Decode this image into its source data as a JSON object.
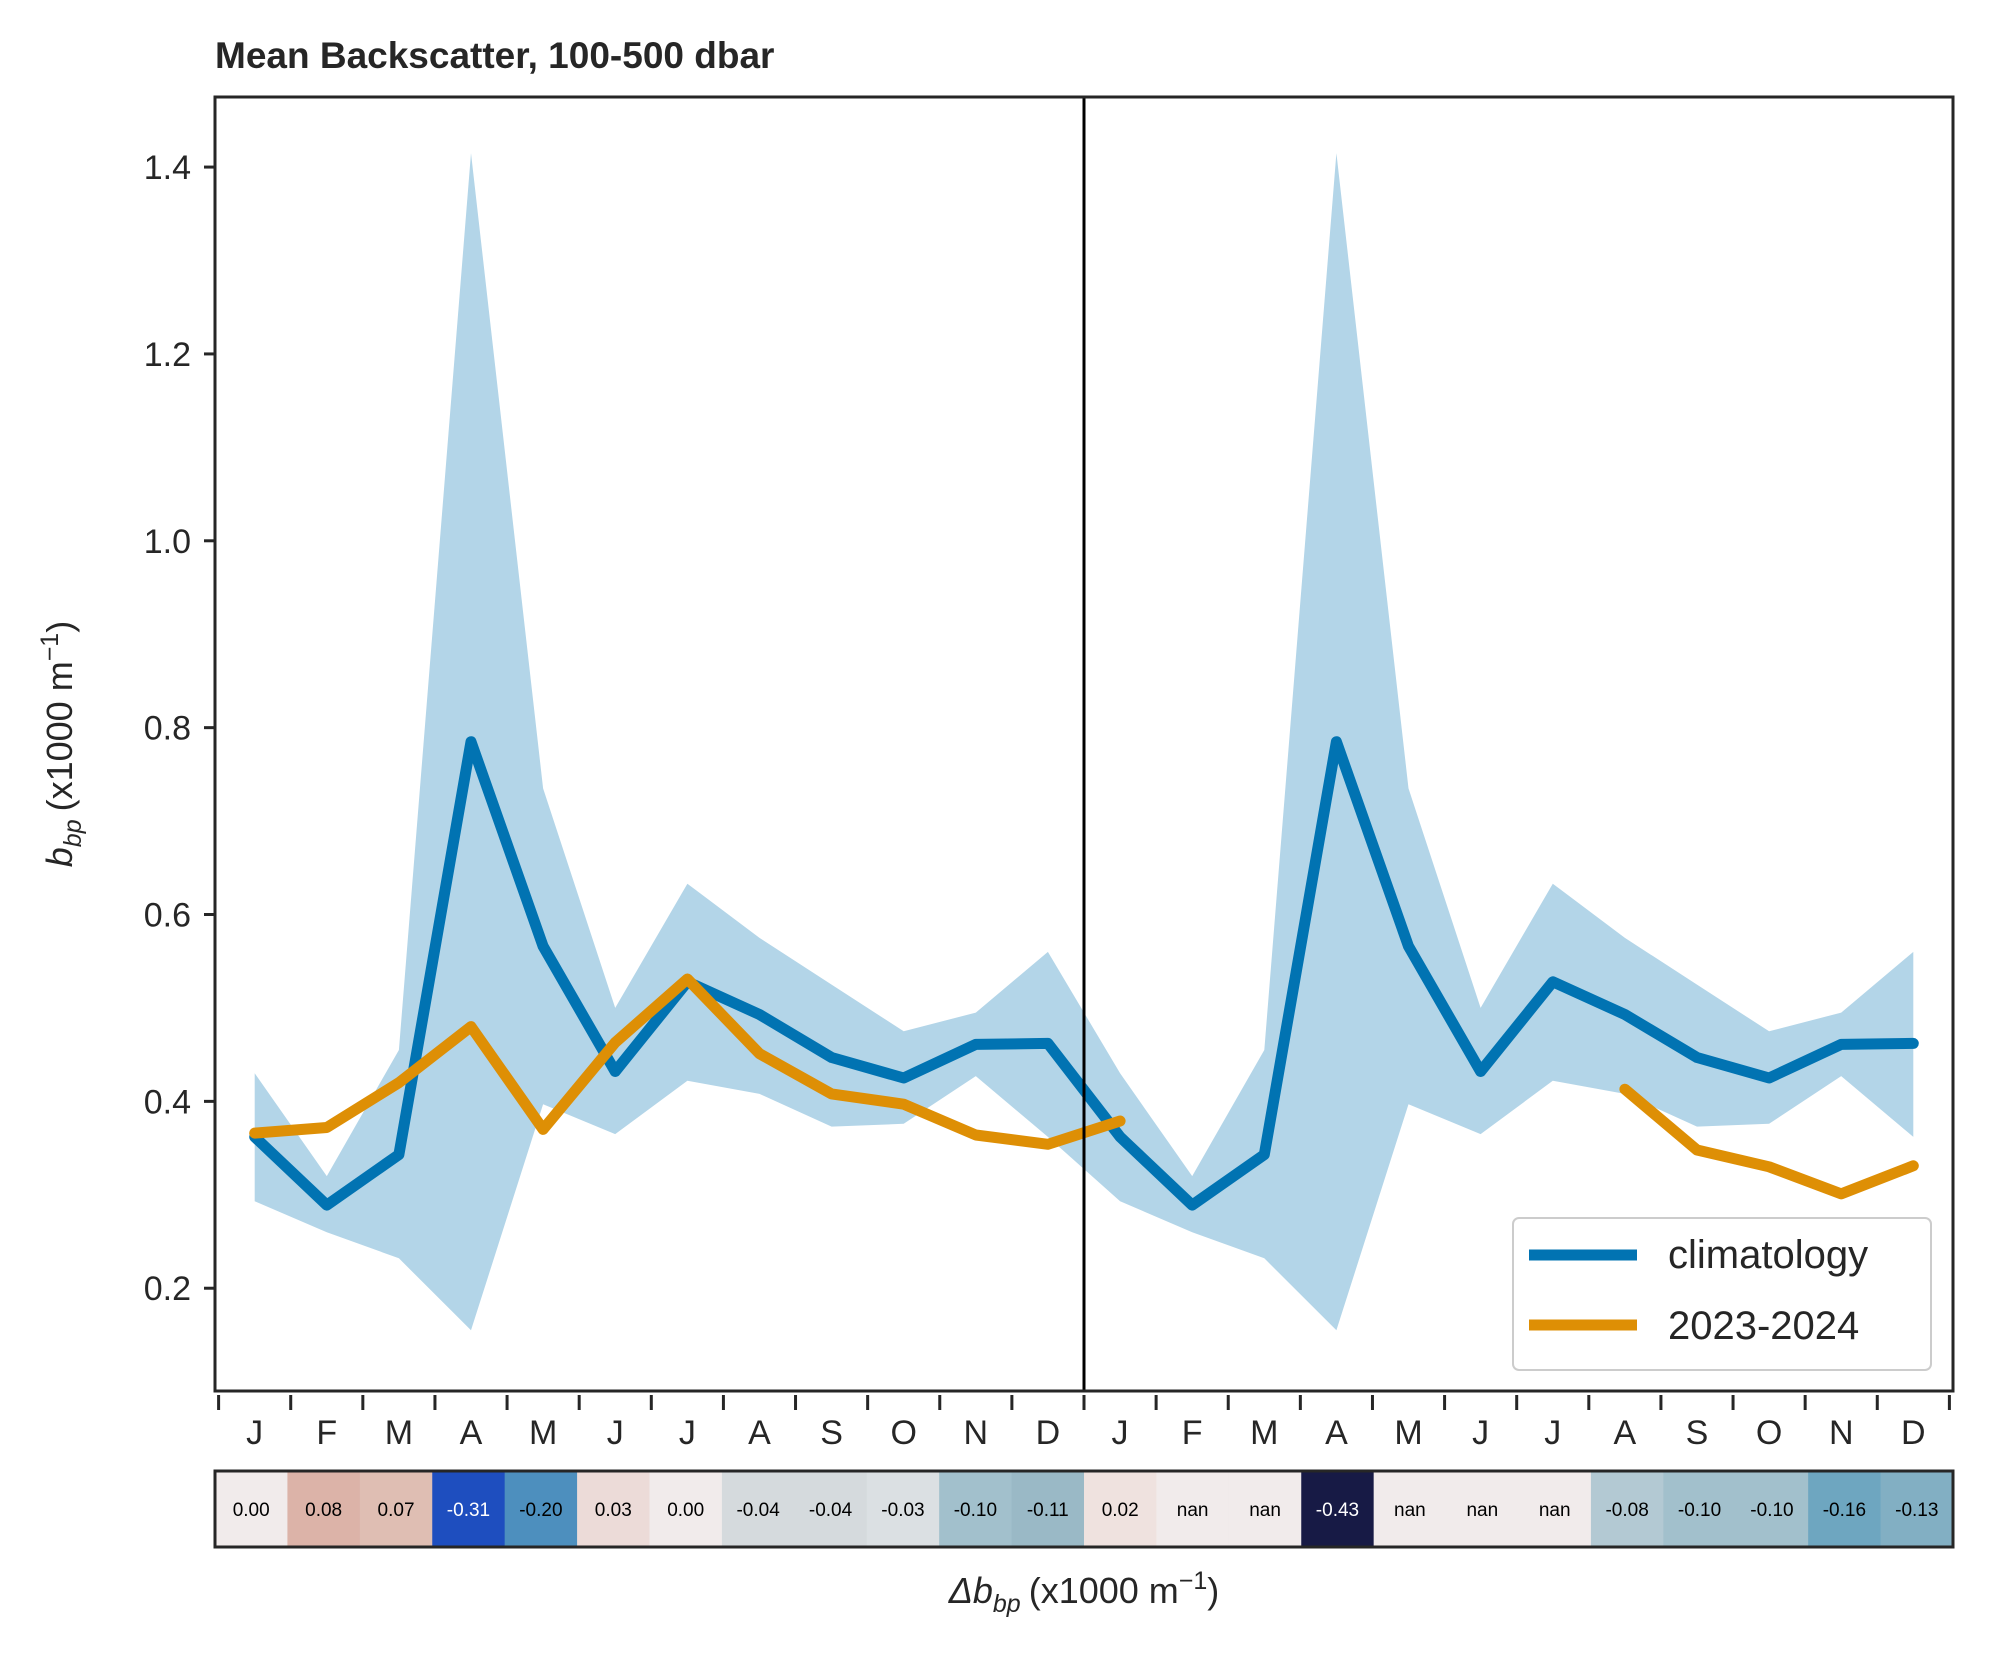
{
  "chart_data": {
    "type": "line",
    "title": "Mean Backscatter, 100-500 dbar",
    "ylabel_main": "b",
    "ylabel_sub": "bp",
    "ylabel_unit": "(x1000 m",
    "ylabel_exp": "−1",
    "ylabel_close": ")",
    "colorbar_label_main": "Δb",
    "colorbar_label_sub": "bp",
    "colorbar_label_unit": "(x1000 m",
    "colorbar_label_exp": "−1",
    "colorbar_label_close": ")",
    "ylim": [
      0.09,
      1.475
    ],
    "yticks": [
      0.2,
      0.4,
      0.6,
      0.8,
      1.0,
      1.2,
      1.4
    ],
    "ytick_labels": [
      "0.2",
      "0.4",
      "0.6",
      "0.8",
      "1.0",
      "1.2",
      "1.4"
    ],
    "month_labels": [
      "J",
      "F",
      "M",
      "A",
      "M",
      "J",
      "J",
      "A",
      "S",
      "O",
      "N",
      "D",
      "J",
      "F",
      "M",
      "A",
      "M",
      "J",
      "J",
      "A",
      "S",
      "O",
      "N",
      "D"
    ],
    "climatology": {
      "name": "climatology",
      "color": "#0173b2",
      "values": [
        0.362,
        0.289,
        0.343,
        0.785,
        0.566,
        0.432,
        0.528,
        0.493,
        0.447,
        0.425,
        0.461,
        0.462,
        0.362,
        0.289,
        0.343,
        0.785,
        0.566,
        0.432,
        0.528,
        0.493,
        0.447,
        0.425,
        0.461,
        0.462
      ]
    },
    "band": {
      "color": "#b3d5e8",
      "upper": [
        0.43,
        0.32,
        0.455,
        1.415,
        0.735,
        0.5,
        0.633,
        0.575,
        0.525,
        0.475,
        0.495,
        0.56,
        0.43,
        0.32,
        0.455,
        1.415,
        0.735,
        0.5,
        0.633,
        0.575,
        0.525,
        0.475,
        0.495,
        0.56
      ],
      "lower": [
        0.293,
        0.26,
        0.232,
        0.155,
        0.397,
        0.365,
        0.422,
        0.408,
        0.373,
        0.376,
        0.427,
        0.362,
        0.293,
        0.26,
        0.232,
        0.155,
        0.397,
        0.365,
        0.422,
        0.408,
        0.373,
        0.376,
        0.427,
        0.362
      ]
    },
    "observed": {
      "name": "2023-2024",
      "color": "#de8f05",
      "segments": [
        {
          "x": [
            1,
            2,
            3,
            4,
            5,
            6,
            7,
            8,
            9,
            10,
            11,
            12,
            13
          ],
          "y": [
            0.366,
            0.372,
            0.42,
            0.48,
            0.37,
            0.463,
            0.531,
            0.451,
            0.408,
            0.397,
            0.364,
            0.354,
            0.379
          ]
        },
        {
          "x": [
            20,
            21,
            22,
            23,
            24
          ],
          "y": [
            0.413,
            0.348,
            0.33,
            0.301,
            0.331
          ]
        }
      ]
    },
    "year_divider_month": 12.5,
    "legend_position": "lower right",
    "anomalies": {
      "labels": [
        "0.00",
        "0.08",
        "0.07",
        "-0.31",
        "-0.20",
        "0.03",
        "0.00",
        "-0.04",
        "-0.04",
        "-0.03",
        "-0.10",
        "-0.11",
        "0.02",
        "nan",
        "nan",
        "-0.43",
        "nan",
        "nan",
        "nan",
        "-0.08",
        "-0.10",
        "-0.10",
        "-0.16",
        "-0.13"
      ],
      "colors": [
        "#f1ebeb",
        "#dcb3a8",
        "#dfbeb3",
        "#1e4ebf",
        "#4d8fbe",
        "#ecdbd8",
        "#f1ebeb",
        "#d5dadd",
        "#d5dadd",
        "#dbe0e3",
        "#a2c0cc",
        "#9ab9c6",
        "#efe2df",
        "#f1ebeb",
        "#f1ebeb",
        "#171a45",
        "#f1ebeb",
        "#f1ebeb",
        "#f1ebeb",
        "#b3c9d3",
        "#a2c0cc",
        "#a2c0cc",
        "#6ea6c0",
        "#82afc3"
      ],
      "text_colors": [
        "#000000",
        "#000000",
        "#000000",
        "#ffffff",
        "#000000",
        "#000000",
        "#000000",
        "#000000",
        "#000000",
        "#000000",
        "#000000",
        "#000000",
        "#000000",
        "#000000",
        "#000000",
        "#ffffff",
        "#000000",
        "#000000",
        "#000000",
        "#000000",
        "#000000",
        "#000000",
        "#000000",
        "#000000"
      ]
    }
  }
}
